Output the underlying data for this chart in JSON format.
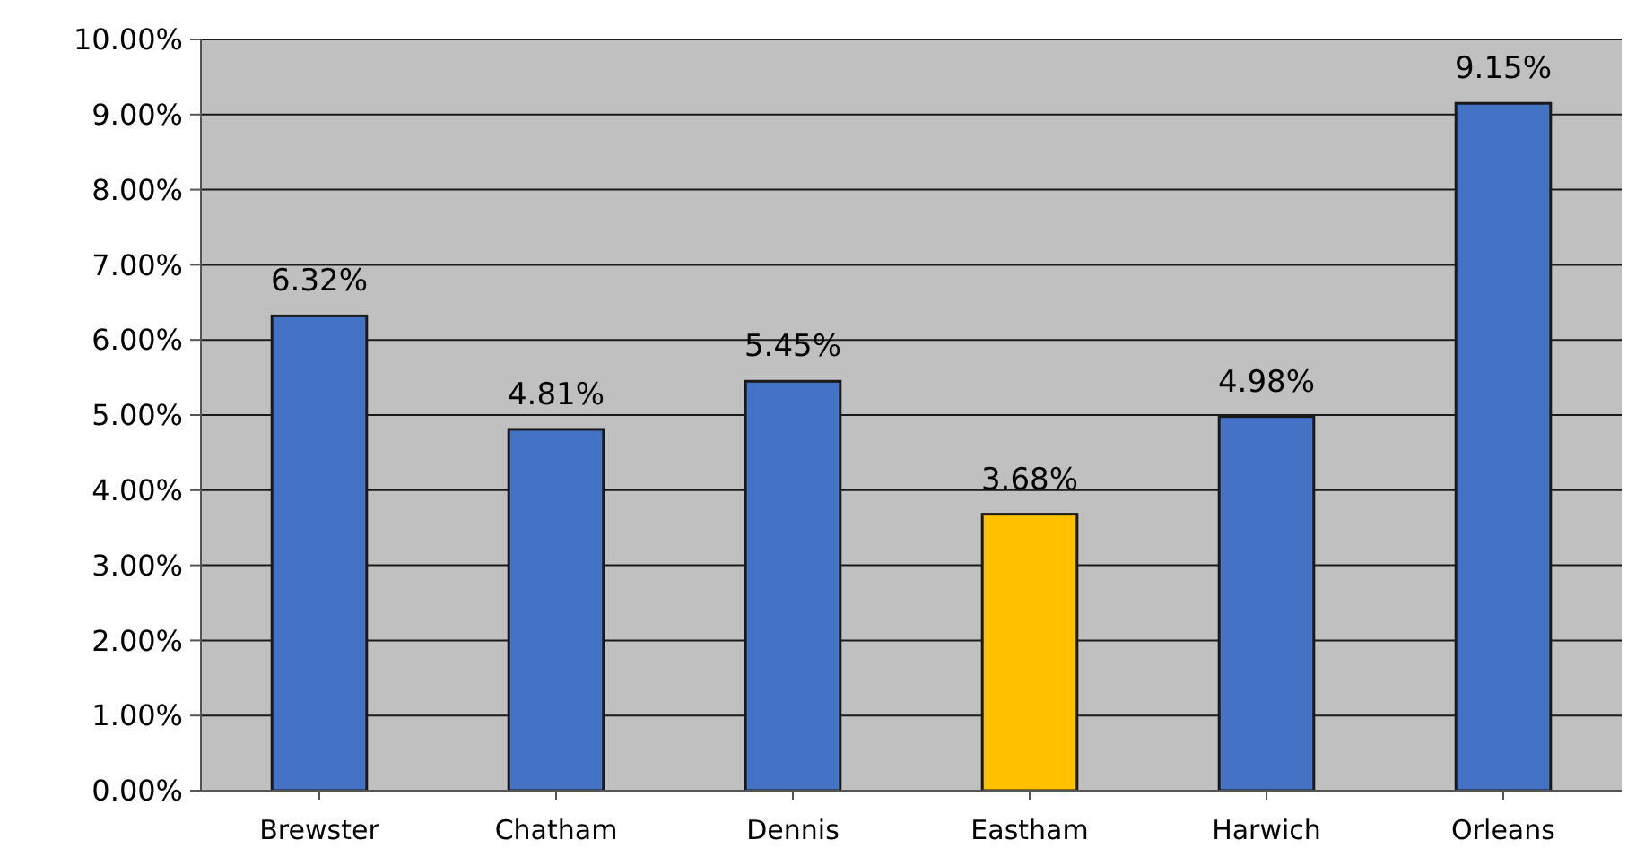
{
  "chart_data": {
    "type": "bar",
    "categories": [
      "Brewster",
      "Chatham",
      "Dennis",
      "Eastham",
      "Harwich",
      "Orleans"
    ],
    "values": [
      6.32,
      4.81,
      5.45,
      3.68,
      4.98,
      9.15
    ],
    "colors": [
      "#4472c4",
      "#4472c4",
      "#4472c4",
      "#ffc000",
      "#4472c4",
      "#4472c4"
    ],
    "value_labels": [
      "6.32%",
      "4.81%",
      "5.45%",
      "3.68%",
      "4.98%",
      "9.15%"
    ],
    "ylim": [
      0,
      10
    ],
    "yticks": [
      {
        "value": 0,
        "label": "0.00%"
      },
      {
        "value": 1,
        "label": "1.00%"
      },
      {
        "value": 2,
        "label": "2.00%"
      },
      {
        "value": 3,
        "label": "3.00%"
      },
      {
        "value": 4,
        "label": "4.00%"
      },
      {
        "value": 5,
        "label": "5.00%"
      },
      {
        "value": 6,
        "label": "6.00%"
      },
      {
        "value": 7,
        "label": "7.00%"
      },
      {
        "value": 8,
        "label": "8.00%"
      },
      {
        "value": 9,
        "label": "9.00%"
      },
      {
        "value": 10,
        "label": "10.00%"
      }
    ],
    "grid": true
  }
}
